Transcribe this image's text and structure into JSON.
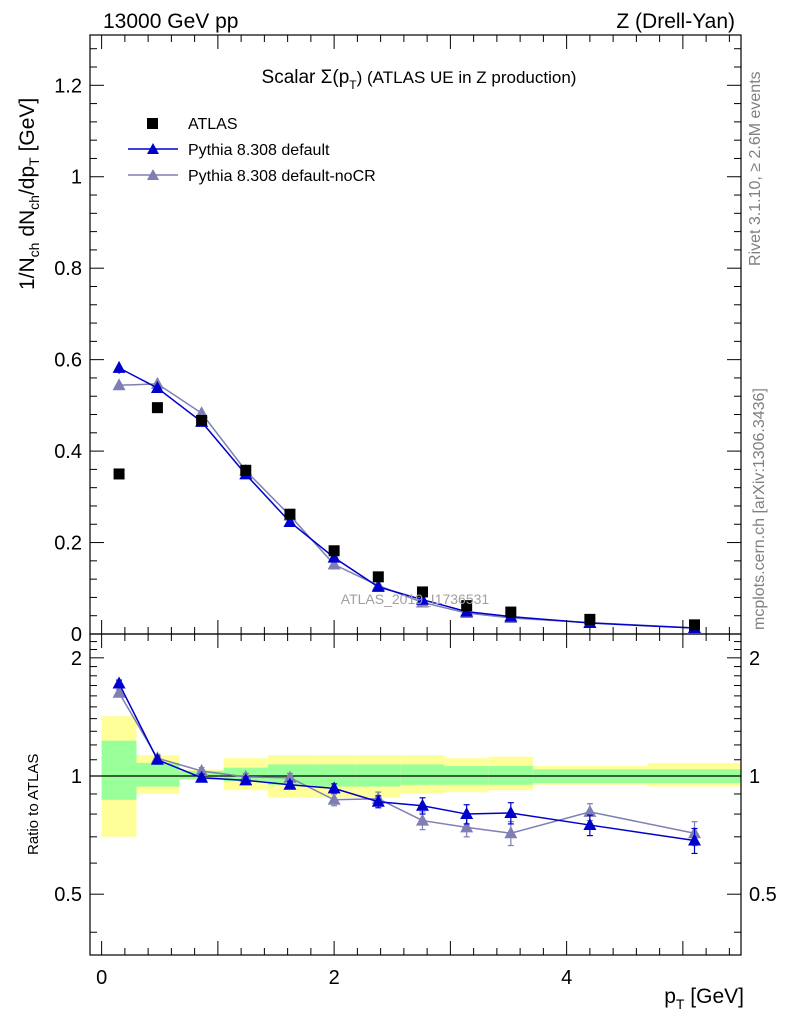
{
  "header": {
    "energy": "13000 GeV pp",
    "process": "Z (Drell-Yan)"
  },
  "side_labels": {
    "rivet": "Rivet 3.1.10, ≥ 2.6M events",
    "mcplots": "mcplots.cern.ch [arXiv:1306.3436]"
  },
  "watermark": "ATLAS_2019_I1736531",
  "colors": {
    "data": "#000000",
    "pythia_default": "#0000cc",
    "pythia_nocr": "#7f7fb3",
    "band_inner": "#99ff99",
    "band_outer": "#ffff99"
  },
  "chart_data": {
    "type": "scatter",
    "title_main": "Scalar Σ(p",
    "title_sub": "T",
    "title_end": ") (ATLAS UE in Z production)",
    "ylabel": "1/N_ch dN_ch/dp_T [GeV]",
    "xlabel": "p_T [GeV]",
    "ratio_ylabel": "Ratio to ATLAS",
    "xlim": [
      -0.1,
      5.5
    ],
    "ylim": [
      0,
      1.31
    ],
    "ratio_ylim": [
      0.35,
      2.3
    ],
    "x_ticks": [
      "0",
      "2",
      "4"
    ],
    "y_ticks": [
      "0",
      "0.2",
      "0.4",
      "0.6",
      "0.8",
      "1",
      "1.2"
    ],
    "ratio_ticks": [
      "0.5",
      "1",
      "2"
    ],
    "x": [
      0.15,
      0.48,
      0.86,
      1.24,
      1.62,
      2.0,
      2.38,
      2.76,
      3.14,
      3.52,
      4.2,
      5.1
    ],
    "bins": [
      [
        0.0,
        0.3
      ],
      [
        0.3,
        0.67
      ],
      [
        0.67,
        1.05
      ],
      [
        1.05,
        1.43
      ],
      [
        1.43,
        1.81
      ],
      [
        1.81,
        2.19
      ],
      [
        2.19,
        2.57
      ],
      [
        2.57,
        2.95
      ],
      [
        2.95,
        3.33
      ],
      [
        3.33,
        3.71
      ],
      [
        3.71,
        4.7
      ],
      [
        4.7,
        5.5
      ]
    ],
    "atlas": [
      0.35,
      0.495,
      0.467,
      0.358,
      0.262,
      0.182,
      0.125,
      0.092,
      0.062,
      0.048,
      0.032,
      0.02
    ],
    "band_inner": [
      [
        0.87,
        1.23
      ],
      [
        0.94,
        1.08
      ],
      [
        0.98,
        1.03
      ],
      [
        0.97,
        1.05
      ],
      [
        0.95,
        1.07
      ],
      [
        0.94,
        1.07
      ],
      [
        0.94,
        1.07
      ],
      [
        0.95,
        1.07
      ],
      [
        0.95,
        1.06
      ],
      [
        0.95,
        1.06
      ],
      [
        0.96,
        1.04
      ],
      [
        0.96,
        1.04
      ]
    ],
    "band_outer": [
      [
        0.7,
        1.42
      ],
      [
        0.9,
        1.13
      ],
      [
        0.98,
        1.04
      ],
      [
        0.92,
        1.11
      ],
      [
        0.88,
        1.13
      ],
      [
        0.88,
        1.13
      ],
      [
        0.88,
        1.13
      ],
      [
        0.9,
        1.13
      ],
      [
        0.91,
        1.11
      ],
      [
        0.92,
        1.12
      ],
      [
        0.95,
        1.06
      ],
      [
        0.94,
        1.08
      ]
    ],
    "series": [
      {
        "name": "Pythia 8.308 default",
        "values": [
          0.582,
          0.538,
          0.464,
          0.349,
          0.245,
          0.167,
          0.103,
          0.075,
          0.049,
          0.038,
          0.024,
          0.013
        ],
        "errors": [
          0.013,
          0.01,
          0.009,
          0.007,
          0.005,
          0.004,
          0.003,
          0.002,
          0.002,
          0.001,
          0.001,
          0.001
        ],
        "ratio": [
          1.72,
          1.1,
          0.99,
          0.975,
          0.95,
          0.93,
          0.86,
          0.84,
          0.8,
          0.805,
          0.75,
          0.685
        ],
        "ratio_err": [
          0.035,
          0.025,
          0.02,
          0.02,
          0.02,
          0.025,
          0.03,
          0.04,
          0.045,
          0.05,
          0.045,
          0.05
        ]
      },
      {
        "name": "Pythia 8.308 default-noCR",
        "values": [
          0.544,
          0.547,
          0.483,
          0.357,
          0.259,
          0.152,
          0.106,
          0.069,
          0.046,
          0.035,
          0.025,
          0.013
        ],
        "errors": [
          0.01,
          0.01,
          0.009,
          0.007,
          0.005,
          0.004,
          0.003,
          0.002,
          0.002,
          0.001,
          0.001,
          0.001
        ],
        "ratio": [
          1.63,
          1.11,
          1.03,
          0.995,
          0.99,
          0.87,
          0.875,
          0.77,
          0.74,
          0.715,
          0.81,
          0.715
        ],
        "ratio_err": [
          0.03,
          0.025,
          0.02,
          0.02,
          0.025,
          0.03,
          0.035,
          0.04,
          0.04,
          0.05,
          0.04,
          0.05
        ]
      }
    ]
  }
}
